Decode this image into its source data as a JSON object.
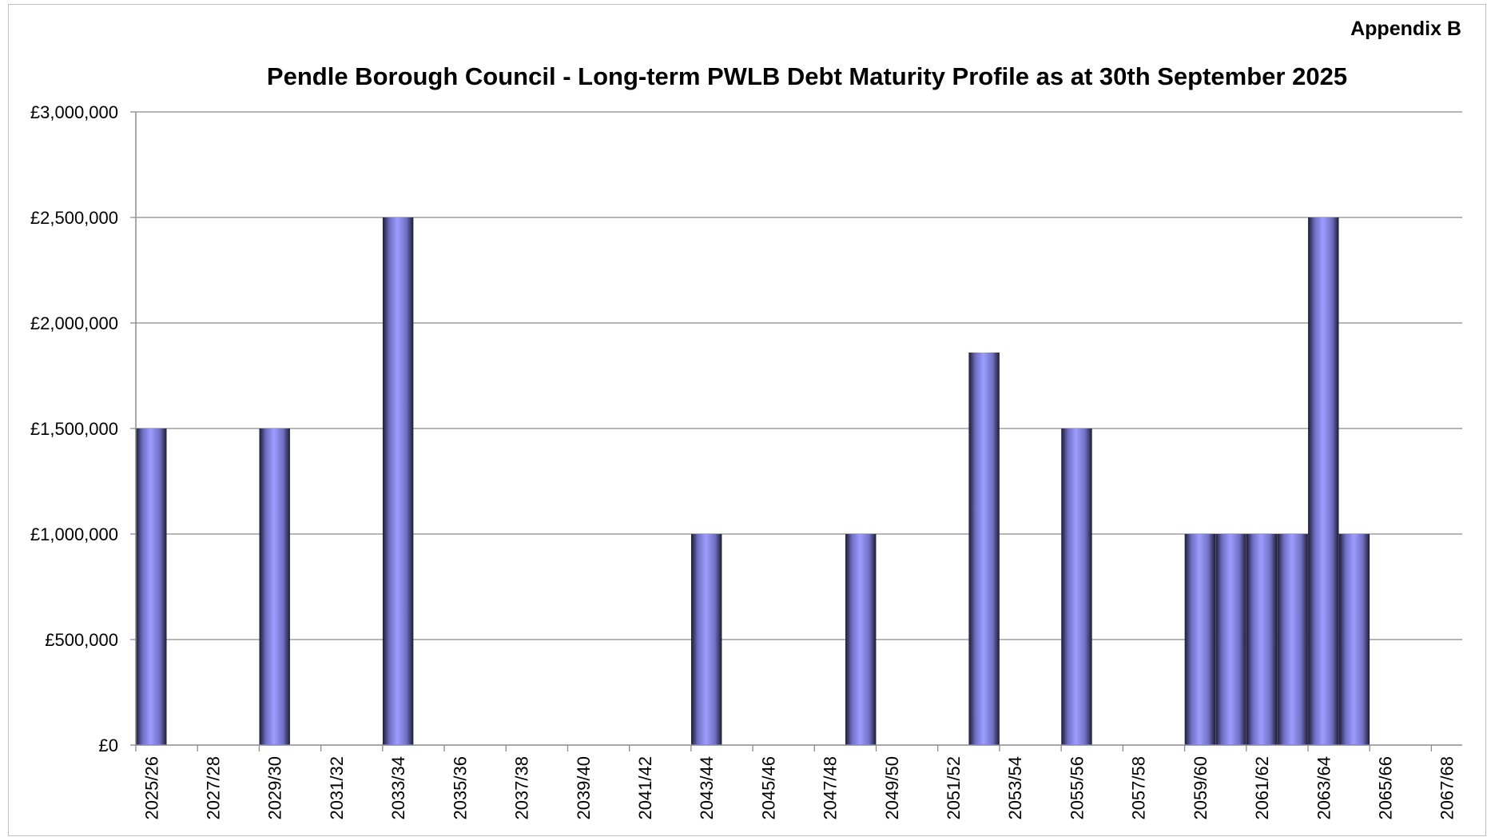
{
  "appendix_label": "Appendix B",
  "chart_data": {
    "type": "bar",
    "title": "Pendle Borough Council - Long-term PWLB Debt Maturity Profile as at 30th September 2025",
    "xlabel": "",
    "ylabel": "",
    "ylim": [
      0,
      3000000
    ],
    "yticks": [
      0,
      500000,
      1000000,
      1500000,
      2000000,
      2500000,
      3000000
    ],
    "ytick_labels": [
      "£0",
      "£500,000",
      "£1,000,000",
      "£1,500,000",
      "£2,000,000",
      "£2,500,000",
      "£3,000,000"
    ],
    "grid": true,
    "legend": "none",
    "categories": [
      "2025/26",
      "2026/27",
      "2027/28",
      "2028/29",
      "2029/30",
      "2030/31",
      "2031/32",
      "2032/33",
      "2033/34",
      "2034/35",
      "2035/36",
      "2036/37",
      "2037/38",
      "2038/39",
      "2039/40",
      "2040/41",
      "2041/42",
      "2042/43",
      "2043/44",
      "2044/45",
      "2045/46",
      "2046/47",
      "2047/48",
      "2048/49",
      "2049/50",
      "2050/51",
      "2051/52",
      "2052/53",
      "2053/54",
      "2054/55",
      "2055/56",
      "2056/57",
      "2057/58",
      "2058/59",
      "2059/60",
      "2060/61",
      "2061/62",
      "2062/63",
      "2063/64",
      "2064/65",
      "2065/66",
      "2066/67",
      "2067/68"
    ],
    "visible_tick_labels": [
      "2025/26",
      "2027/28",
      "2029/30",
      "2031/32",
      "2033/34",
      "2035/36",
      "2037/38",
      "2039/40",
      "2041/42",
      "2043/44",
      "2045/46",
      "2047/48",
      "2049/50",
      "2051/52",
      "2053/54",
      "2055/56",
      "2057/58",
      "2059/60",
      "2061/62",
      "2063/64",
      "2065/66",
      "2067/68"
    ],
    "values": [
      1500000,
      0,
      0,
      0,
      1500000,
      0,
      0,
      0,
      2500000,
      0,
      0,
      0,
      0,
      0,
      0,
      0,
      0,
      0,
      1000000,
      0,
      0,
      0,
      0,
      1000000,
      0,
      0,
      0,
      1860000,
      0,
      0,
      1500000,
      0,
      0,
      0,
      1000000,
      1000000,
      1000000,
      1000000,
      2500000,
      1000000,
      0,
      0,
      0
    ],
    "bar_color": "#9999ff"
  }
}
